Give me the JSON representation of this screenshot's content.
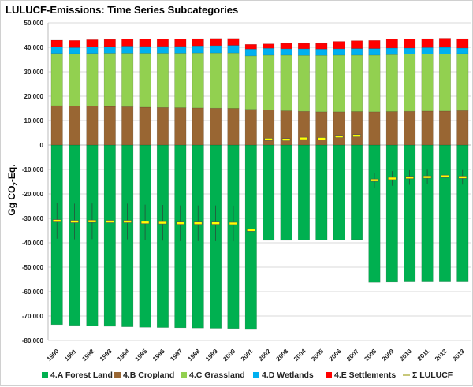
{
  "chart_data": {
    "type": "bar",
    "stacked": true,
    "title": "LULUCF-Emissions:  Time Series Subcategories",
    "ylabel": "Gg CO2-Eq.",
    "ylim": [
      -80000,
      50000
    ],
    "yticks": [
      50000,
      40000,
      30000,
      20000,
      10000,
      0,
      -10000,
      -20000,
      -30000,
      -40000,
      -50000,
      -60000,
      -70000,
      -80000
    ],
    "ytick_labels": [
      "50.000",
      "40.000",
      "30.000",
      "20.000",
      "10.000",
      "0",
      "-10.000",
      "-20.000",
      "-30.000",
      "-40.000",
      "-50.000",
      "-60.000",
      "-70.000",
      "-80.000"
    ],
    "grid": true,
    "legend_position": "bottom",
    "categories": [
      "1990",
      "1991",
      "1992",
      "1993",
      "1994",
      "1995",
      "1996",
      "1997",
      "1998",
      "1999",
      "2000",
      "2001",
      "2002",
      "2003",
      "2004",
      "2005",
      "2006",
      "2007",
      "2008",
      "2009",
      "2010",
      "2011",
      "2012",
      "2013"
    ],
    "series": [
      {
        "name": "4.A Forest Land",
        "color": "#00b050",
        "values": [
          -73500,
          -73800,
          -74000,
          -74200,
          -74400,
          -74600,
          -74700,
          -74800,
          -74900,
          -75000,
          -75100,
          -75500,
          -39000,
          -39000,
          -38900,
          -38900,
          -38800,
          -38700,
          -56200,
          -56100,
          -56000,
          -56000,
          -56000,
          -56000
        ]
      },
      {
        "name": "4.B Cropland",
        "color": "#996633",
        "values": [
          16100,
          15900,
          15900,
          15800,
          15700,
          15500,
          15400,
          15300,
          15200,
          15100,
          15000,
          14600,
          14300,
          14000,
          13800,
          13600,
          13600,
          13700,
          13600,
          13700,
          13800,
          13900,
          13900,
          14100
        ]
      },
      {
        "name": "4.C Grassland",
        "color": "#92d050",
        "values": [
          21400,
          21500,
          21600,
          21800,
          21900,
          22100,
          22200,
          22300,
          22500,
          22600,
          22700,
          21900,
          22500,
          22800,
          22900,
          23100,
          23200,
          23100,
          23200,
          23300,
          23400,
          23400,
          23400,
          23300
        ]
      },
      {
        "name": "4.D Wetlands",
        "color": "#00b0f0",
        "values": [
          2600,
          2500,
          2700,
          2700,
          2900,
          2800,
          2800,
          2800,
          2900,
          3000,
          3100,
          2800,
          2800,
          2600,
          2700,
          2600,
          2600,
          2700,
          2700,
          2700,
          2500,
          2600,
          2700,
          2300
        ]
      },
      {
        "name": "4.E Settlements",
        "color": "#ff0000",
        "values": [
          2800,
          2900,
          2900,
          2900,
          2900,
          3000,
          3000,
          3000,
          2900,
          2900,
          2800,
          1900,
          1800,
          2200,
          2200,
          2300,
          3000,
          3200,
          3300,
          3600,
          3700,
          3600,
          3700,
          3800
        ]
      }
    ],
    "line_series": {
      "name": "Σ LULUCF",
      "color": "#ffff00",
      "values": [
        -31000,
        -31300,
        -31200,
        -31300,
        -31300,
        -31700,
        -31800,
        -32000,
        -32000,
        -32000,
        -32100,
        -34800,
        2300,
        2200,
        2700,
        2600,
        3500,
        3800,
        -14400,
        -13700,
        -13300,
        -13100,
        -12800,
        -13200
      ],
      "error": [
        7300,
        7300,
        7300,
        7300,
        7300,
        7300,
        7300,
        7300,
        7300,
        7300,
        7300,
        8000,
        0,
        0,
        0,
        0,
        0,
        0,
        3000,
        3000,
        3000,
        3000,
        3000,
        3000
      ]
    }
  }
}
